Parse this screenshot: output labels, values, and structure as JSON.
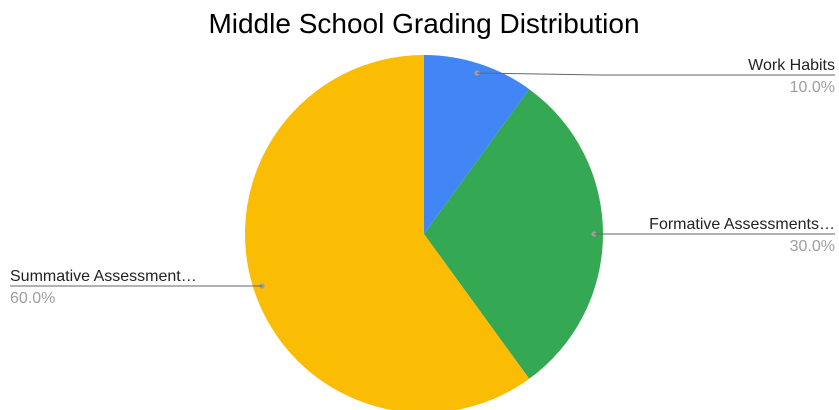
{
  "chart_data": {
    "type": "pie",
    "title": "Middle School Grading Distribution",
    "slices": [
      {
        "label": "Work Habits",
        "value": 10.0,
        "percent_label": "10.0%",
        "color": "#4285f4"
      },
      {
        "label": "Formative Assessments…",
        "value": 30.0,
        "percent_label": "30.0%",
        "color": "#34a853"
      },
      {
        "label": "Summative Assessment…",
        "value": 60.0,
        "percent_label": "60.0%",
        "color": "#fbbc04"
      }
    ],
    "start_angle": "12 o'clock",
    "direction": "clockwise",
    "legend": "none (labels with leader lines)"
  }
}
